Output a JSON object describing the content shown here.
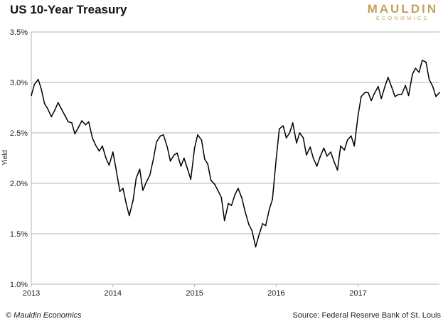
{
  "header": {
    "title": "US 10-Year Treasury",
    "logo_main": "MAULDIN",
    "logo_sub": "ECONOMICS"
  },
  "footer": {
    "copyright": "© Mauldin Economics",
    "source": "Source: Federal Reserve Bank of St. Louis"
  },
  "colors": {
    "line": "#000000",
    "grid": "#b3b3b3",
    "logo": "#c3a25c"
  },
  "chart_data": {
    "type": "line",
    "title": "US 10-Year Treasury",
    "xlabel": "",
    "ylabel": "Yield",
    "ylim": [
      1.0,
      3.5
    ],
    "xlim": [
      "2013-01-01",
      "2017-12-31"
    ],
    "y_ticks": [
      1.0,
      1.5,
      2.0,
      2.5,
      3.0,
      3.5
    ],
    "y_tick_labels": [
      "1.0%",
      "1.5%",
      "2.0%",
      "2.5%",
      "3.0%",
      "3.5%"
    ],
    "x_ticks": [
      "2013-01-01",
      "2014-01-01",
      "2015-01-01",
      "2016-01-01",
      "2017-01-01"
    ],
    "x_tick_labels": [
      "2013",
      "2014",
      "2015",
      "2016",
      "2017"
    ],
    "grid": "horizontal",
    "series": [
      {
        "x": [
          "2013-01-01",
          "2013-01-15",
          "2013-02-01",
          "2013-02-15",
          "2013-03-01",
          "2013-03-15",
          "2013-04-01",
          "2013-04-15",
          "2013-05-01",
          "2013-05-15",
          "2013-06-01",
          "2013-06-15",
          "2013-07-01",
          "2013-07-15",
          "2013-08-01",
          "2013-08-15",
          "2013-09-01",
          "2013-09-15",
          "2013-10-01",
          "2013-10-15",
          "2013-11-01",
          "2013-11-15",
          "2013-12-01",
          "2013-12-15",
          "2014-01-01",
          "2014-01-15",
          "2014-02-01",
          "2014-02-15",
          "2014-03-01",
          "2014-03-15",
          "2014-04-01",
          "2014-04-15",
          "2014-05-01",
          "2014-05-15",
          "2014-06-01",
          "2014-06-15",
          "2014-07-01",
          "2014-07-15",
          "2014-08-01",
          "2014-08-15",
          "2014-09-01",
          "2014-09-15",
          "2014-10-01",
          "2014-10-15",
          "2014-11-01",
          "2014-11-15",
          "2014-12-01",
          "2014-12-15",
          "2015-01-01",
          "2015-01-15",
          "2015-02-01",
          "2015-02-15",
          "2015-03-01",
          "2015-03-15",
          "2015-04-01",
          "2015-04-15",
          "2015-05-01",
          "2015-05-15",
          "2015-06-01",
          "2015-06-15",
          "2015-07-01",
          "2015-07-15",
          "2015-08-01",
          "2015-08-15",
          "2015-09-01",
          "2015-09-15",
          "2015-10-01",
          "2015-10-15",
          "2015-11-01",
          "2015-11-15",
          "2015-12-01",
          "2015-12-15",
          "2016-01-01",
          "2016-01-15",
          "2016-02-01",
          "2016-02-15",
          "2016-03-01",
          "2016-03-15",
          "2016-04-01",
          "2016-04-15",
          "2016-05-01",
          "2016-05-15",
          "2016-06-01",
          "2016-06-15",
          "2016-07-01",
          "2016-07-15",
          "2016-08-01",
          "2016-08-15",
          "2016-09-01",
          "2016-09-15",
          "2016-10-01",
          "2016-10-15",
          "2016-11-01",
          "2016-11-15",
          "2016-12-01",
          "2016-12-15",
          "2017-01-01",
          "2017-01-15",
          "2017-02-01",
          "2017-02-15",
          "2017-03-01",
          "2017-03-15",
          "2017-04-01",
          "2017-04-15",
          "2017-05-01",
          "2017-05-15",
          "2017-06-01",
          "2017-06-15",
          "2017-07-01",
          "2017-07-15",
          "2017-08-01",
          "2017-08-15",
          "2017-09-01",
          "2017-09-15",
          "2017-10-01",
          "2017-10-15",
          "2017-11-01",
          "2017-11-15",
          "2017-12-01",
          "2017-12-15",
          "2017-12-31"
        ],
        "values": [
          2.87,
          2.98,
          3.03,
          2.93,
          2.79,
          2.74,
          2.66,
          2.72,
          2.8,
          2.74,
          2.67,
          2.61,
          2.6,
          2.49,
          2.56,
          2.62,
          2.58,
          2.61,
          2.45,
          2.38,
          2.32,
          2.37,
          2.25,
          2.18,
          2.31,
          2.14,
          1.92,
          1.95,
          1.8,
          1.68,
          1.83,
          2.05,
          2.14,
          1.93,
          2.02,
          2.08,
          2.24,
          2.41,
          2.47,
          2.48,
          2.36,
          2.22,
          2.28,
          2.3,
          2.17,
          2.25,
          2.14,
          2.04,
          2.35,
          2.48,
          2.43,
          2.24,
          2.19,
          2.03,
          1.99,
          1.93,
          1.86,
          1.63,
          1.8,
          1.78,
          1.89,
          1.95,
          1.85,
          1.72,
          1.59,
          1.53,
          1.37,
          1.48,
          1.6,
          1.58,
          1.74,
          1.84,
          2.24,
          2.54,
          2.57,
          2.45,
          2.5,
          2.6,
          2.4,
          2.5,
          2.45,
          2.28,
          2.36,
          2.25,
          2.17,
          2.26,
          2.35,
          2.27,
          2.31,
          2.22,
          2.13,
          2.37,
          2.33,
          2.43,
          2.47,
          2.37,
          2.67,
          2.86,
          2.9,
          2.9,
          2.82,
          2.89,
          2.96,
          2.84,
          2.96,
          3.05,
          2.95,
          2.86,
          2.88,
          2.88,
          2.97,
          2.87,
          3.08,
          3.14,
          3.1,
          3.22,
          3.2,
          3.03,
          2.96,
          2.86,
          2.9
        ],
        "color": "#000000"
      }
    ]
  }
}
